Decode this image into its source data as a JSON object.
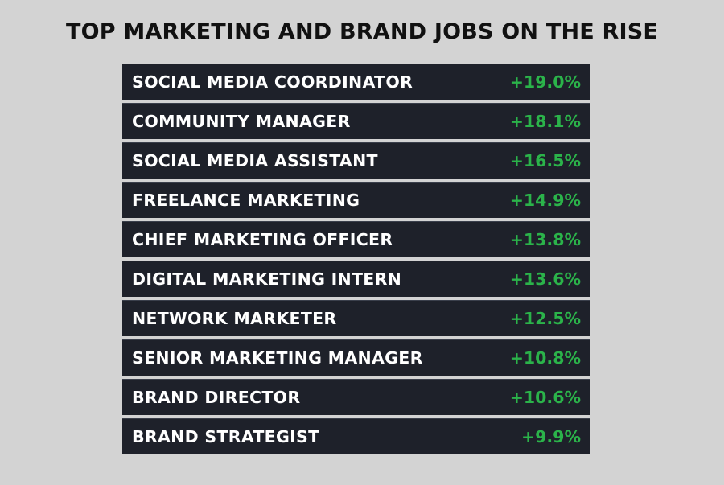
{
  "chart_data": {
    "type": "table",
    "title": "TOP MARKETING AND BRAND JOBS ON THE RISE",
    "rows": [
      {
        "label": "SOCIAL MEDIA COORDINATOR",
        "value": 19.0,
        "display": "+19.0%"
      },
      {
        "label": "COMMUNITY MANAGER",
        "value": 18.1,
        "display": "+18.1%"
      },
      {
        "label": "SOCIAL MEDIA ASSISTANT",
        "value": 16.5,
        "display": "+16.5%"
      },
      {
        "label": "FREELANCE MARKETING",
        "value": 14.9,
        "display": "+14.9%"
      },
      {
        "label": "CHIEF MARKETING OFFICER",
        "value": 13.8,
        "display": "+13.8%"
      },
      {
        "label": "DIGITAL MARKETING INTERN",
        "value": 13.6,
        "display": "+13.6%"
      },
      {
        "label": "NETWORK MARKETER",
        "value": 12.5,
        "display": "+12.5%"
      },
      {
        "label": "SENIOR MARKETING MANAGER",
        "value": 10.8,
        "display": "+10.8%"
      },
      {
        "label": "BRAND DIRECTOR",
        "value": 10.6,
        "display": "+10.6%"
      },
      {
        "label": "BRAND STRATEGIST",
        "value": 9.9,
        "display": "+9.9%"
      }
    ]
  },
  "colors": {
    "background": "#d3d3d3",
    "row_background": "#1e212a",
    "label_text": "#ffffff",
    "value_text": "#2bb34a",
    "title_text": "#111111"
  }
}
